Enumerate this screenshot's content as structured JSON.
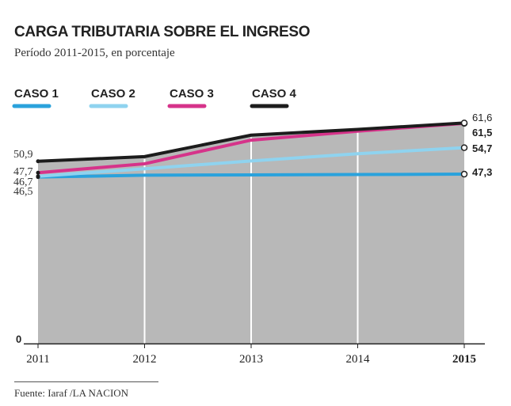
{
  "chart_data": {
    "type": "area",
    "title": "CARGA TRIBUTARIA SOBRE EL INGRESO",
    "subtitle": "Período 2011-2015, en porcentaje",
    "source": "Fuente: Iaraf /LA NACION",
    "x": [
      "2011",
      "2012",
      "2013",
      "2014",
      "2015"
    ],
    "x_bold": [
      "2015"
    ],
    "ylim": [
      0,
      65
    ],
    "y_zero_label": "0",
    "grid": "vertical",
    "legend_position": "top",
    "series": [
      {
        "name": "CASO 1",
        "color": "#2aa2dc",
        "values": [
          46.5,
          47.0,
          47.1,
          47.2,
          47.3
        ]
      },
      {
        "name": "CASO 2",
        "color": "#8fd3ef",
        "values": [
          46.7,
          48.8,
          51.0,
          53.0,
          54.7
        ]
      },
      {
        "name": "CASO 3",
        "color": "#d6338a",
        "values": [
          47.7,
          50.2,
          56.8,
          59.3,
          61.5
        ]
      },
      {
        "name": "CASO 4",
        "color": "#1c1c1c",
        "values": [
          50.9,
          52.2,
          58.2,
          59.8,
          61.6
        ]
      }
    ],
    "start_labels": [
      "50,9",
      "47,7",
      "46,7",
      "46,5"
    ],
    "end_labels": [
      "61,6",
      "61,5",
      "54,7",
      "47,3"
    ],
    "area_color": "#b8b8b8"
  }
}
